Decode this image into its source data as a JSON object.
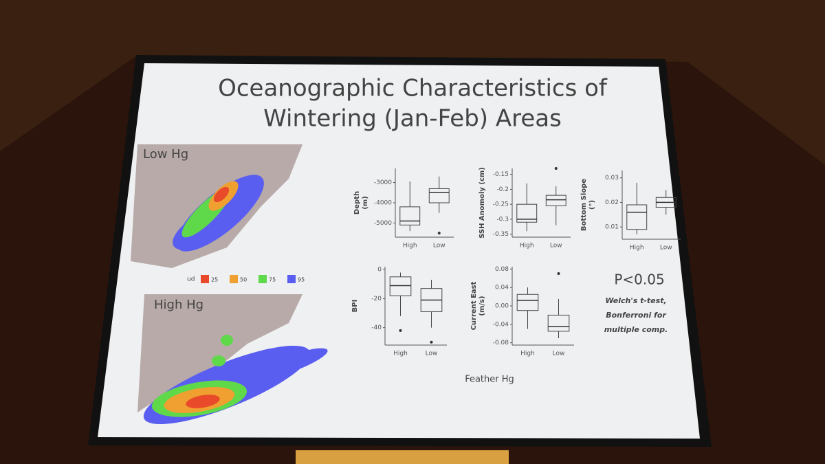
{
  "slide": {
    "title_lines": [
      "Oceanographic Characteristics of",
      "Wintering (Jan-Feb) Areas"
    ],
    "maps": [
      {
        "label": "Low Hg"
      },
      {
        "label": "High Hg"
      }
    ],
    "legend": {
      "title": "ud",
      "items": [
        {
          "label": "25",
          "color": "#e84a2a"
        },
        {
          "label": "50",
          "color": "#f0a030"
        },
        {
          "label": "75",
          "color": "#5fd84a"
        },
        {
          "label": "95",
          "color": "#5a5ef0"
        }
      ]
    },
    "x_label": "Feather Hg",
    "note": {
      "title": "P<0.05",
      "lines": [
        "Welch's t-test,",
        "Bonferroni for",
        "multiple comp."
      ]
    }
  },
  "chart_data": [
    {
      "type": "box",
      "y_label_lines": [
        "Depth",
        "(m)"
      ],
      "categories": [
        "High",
        "Low"
      ],
      "boxes": [
        {
          "min": -5400,
          "q1": -5100,
          "median": -4900,
          "q3": -4200,
          "max": -2950,
          "outliers": []
        },
        {
          "min": -4500,
          "q1": -4000,
          "median": -3500,
          "q3": -3300,
          "max": -2700,
          "outliers": [
            -5500
          ]
        }
      ],
      "ylim": [
        -5700,
        -2300
      ],
      "yticks": [
        -5000,
        -4000,
        -3000
      ]
    },
    {
      "type": "box",
      "y_label_lines": [
        "SSH Anomoly (cm)"
      ],
      "categories": [
        "High",
        "Low"
      ],
      "boxes": [
        {
          "min": -0.34,
          "q1": -0.31,
          "median": -0.3,
          "q3": -0.25,
          "max": -0.18,
          "outliers": []
        },
        {
          "min": -0.32,
          "q1": -0.255,
          "median": -0.235,
          "q3": -0.22,
          "max": -0.19,
          "outliers": [
            -0.13
          ]
        }
      ],
      "ylim": [
        -0.36,
        -0.13
      ],
      "yticks": [
        -0.35,
        -0.3,
        -0.25,
        -0.2,
        -0.15
      ]
    },
    {
      "type": "box",
      "y_label_lines": [
        "Bottom Slope",
        "(°)"
      ],
      "categories": [
        "High",
        "Low"
      ],
      "boxes": [
        {
          "min": 0.007,
          "q1": 0.009,
          "median": 0.016,
          "q3": 0.019,
          "max": 0.028,
          "outliers": []
        },
        {
          "min": 0.015,
          "q1": 0.018,
          "median": 0.02,
          "q3": 0.022,
          "max": 0.025,
          "outliers": []
        }
      ],
      "ylim": [
        0.005,
        0.033
      ],
      "yticks": [
        0.01,
        0.02,
        0.03
      ]
    },
    {
      "type": "box",
      "y_label_lines": [
        "BPI"
      ],
      "categories": [
        "High",
        "Low"
      ],
      "boxes": [
        {
          "min": -32,
          "q1": -18,
          "median": -11,
          "q3": -5,
          "max": -2,
          "outliers": [
            -42
          ]
        },
        {
          "min": -40,
          "q1": -29,
          "median": -21,
          "q3": -13,
          "max": -7,
          "outliers": [
            -50
          ]
        }
      ],
      "ylim": [
        -52,
        2
      ],
      "yticks": [
        -40,
        -20,
        0
      ]
    },
    {
      "type": "box",
      "y_label_lines": [
        "Current East",
        "(m/s)"
      ],
      "categories": [
        "High",
        "Low"
      ],
      "boxes": [
        {
          "min": -0.05,
          "q1": -0.01,
          "median": 0.012,
          "q3": 0.025,
          "max": 0.04,
          "outliers": []
        },
        {
          "min": -0.07,
          "q1": -0.055,
          "median": -0.045,
          "q3": -0.02,
          "max": 0.015,
          "outliers": [
            0.07
          ]
        }
      ],
      "ylim": [
        -0.085,
        0.085
      ],
      "yticks": [
        -0.08,
        -0.04,
        {
          "value": 0,
          "label": "0.00"
        },
        0.04,
        0.08
      ]
    }
  ]
}
